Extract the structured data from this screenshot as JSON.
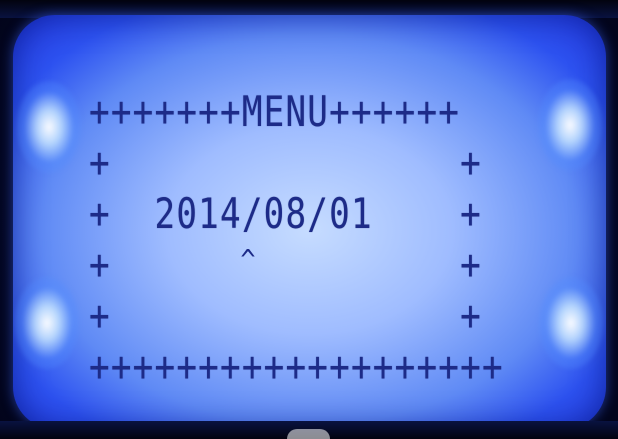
{
  "display": {
    "line_1": "+++++++MENU++++++",
    "line_2": "+                +",
    "line_3": "+  2014/08/01    +",
    "line_4": "+                +",
    "line_5": "+                +",
    "line_6": "+++++++++++++++++++",
    "cursor": "^"
  },
  "colors": {
    "backlight": "#9fbcff",
    "text": "#1d2b88",
    "bezel": "#050a2c"
  }
}
